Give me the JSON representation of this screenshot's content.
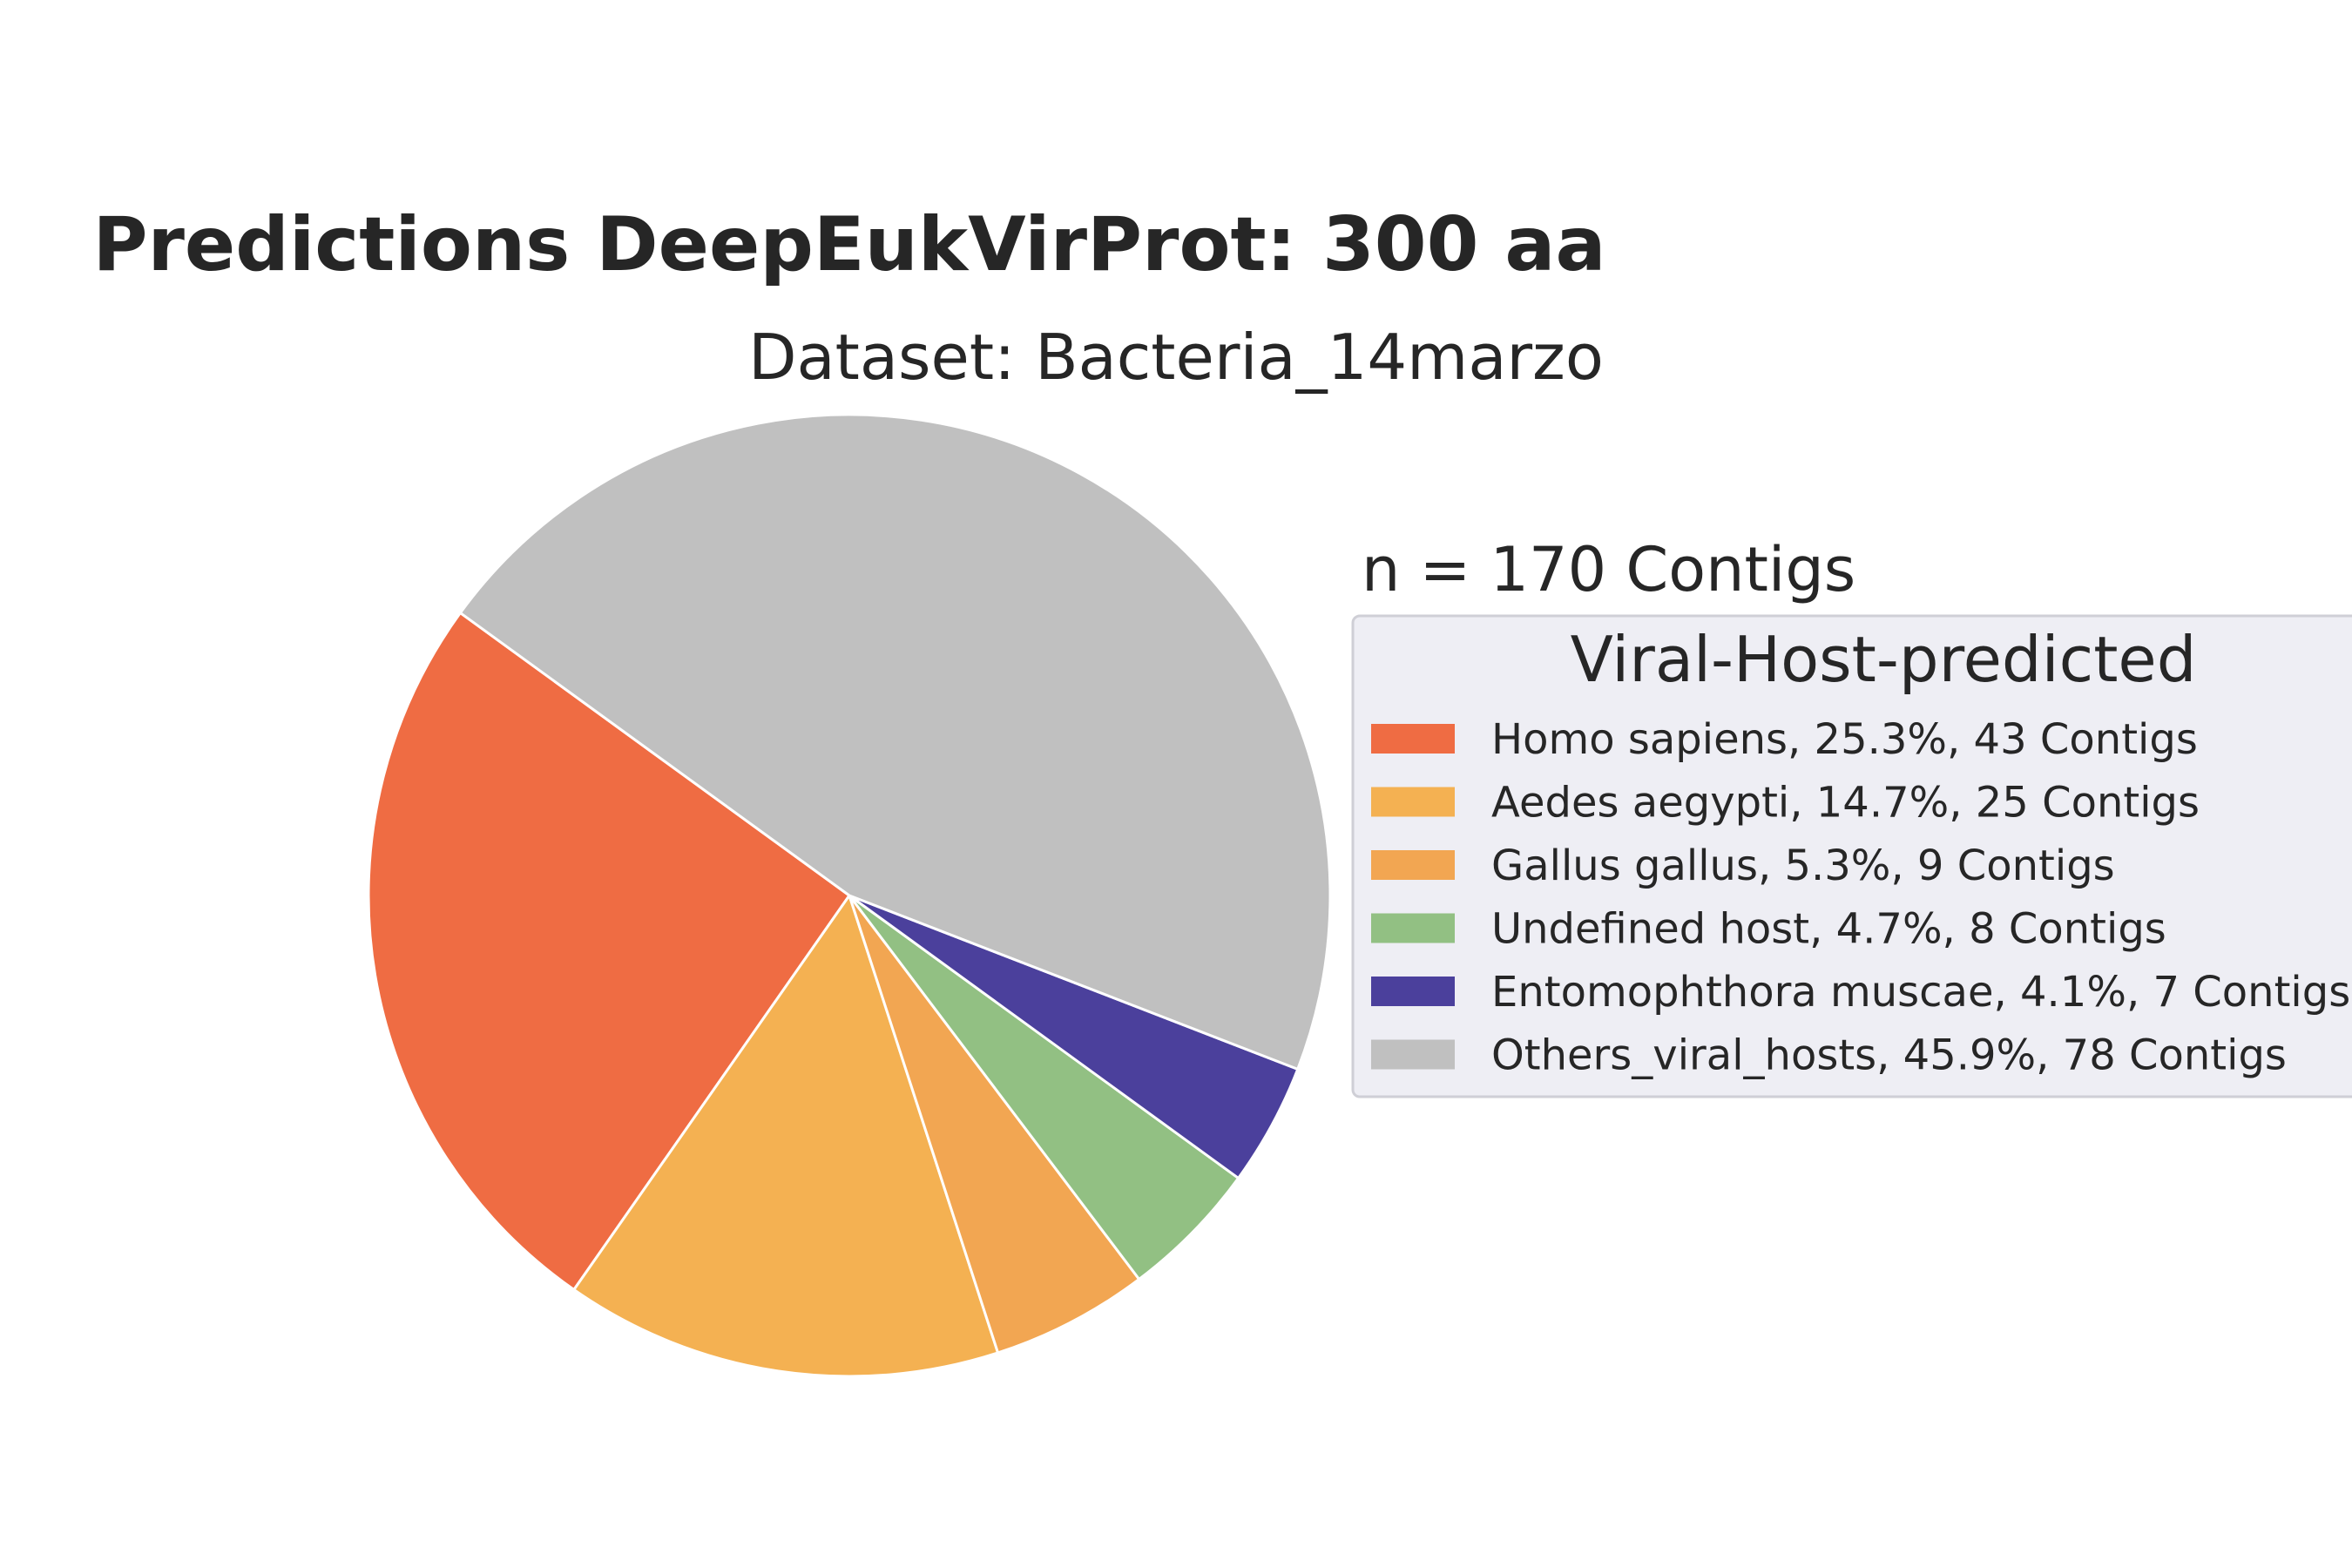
{
  "chart_data": {
    "type": "pie",
    "title": "Predictions DeepEukVirProt: 300 aa",
    "subtitle": "Dataset: Bacteria_14marzo",
    "total_label": "n = 170 Contigs",
    "legend_title": "Viral-Host-predicted",
    "legend_placement": "right",
    "start_angle_deg": 144,
    "direction": "counterclockwise",
    "slices": [
      {
        "name": "Homo sapiens",
        "percent": 25.3,
        "value": 43,
        "color": "#ef6c43",
        "label": "Homo sapiens, 25.3%, 43 Contigs"
      },
      {
        "name": "Aedes aegypti",
        "percent": 14.7,
        "value": 25,
        "color": "#f4b152",
        "label": "Aedes aegypti, 14.7%, 25 Contigs"
      },
      {
        "name": "Gallus gallus",
        "percent": 5.3,
        "value": 9,
        "color": "#f2a652",
        "label": "Gallus gallus, 5.3%, 9 Contigs"
      },
      {
        "name": "Undefined host",
        "percent": 4.7,
        "value": 8,
        "color": "#92c083",
        "label": "Undefined host, 4.7%, 8 Contigs"
      },
      {
        "name": "Entomophthora muscae",
        "percent": 4.1,
        "value": 7,
        "color": "#4b409c",
        "label": "Entomophthora muscae, 4.1%, 7 Contigs"
      },
      {
        "name": "Others_viral_hosts",
        "percent": 45.9,
        "value": 78,
        "color": "#c0c0c0",
        "label": "Others_viral_hosts, 45.9%, 78 Contigs"
      }
    ]
  }
}
